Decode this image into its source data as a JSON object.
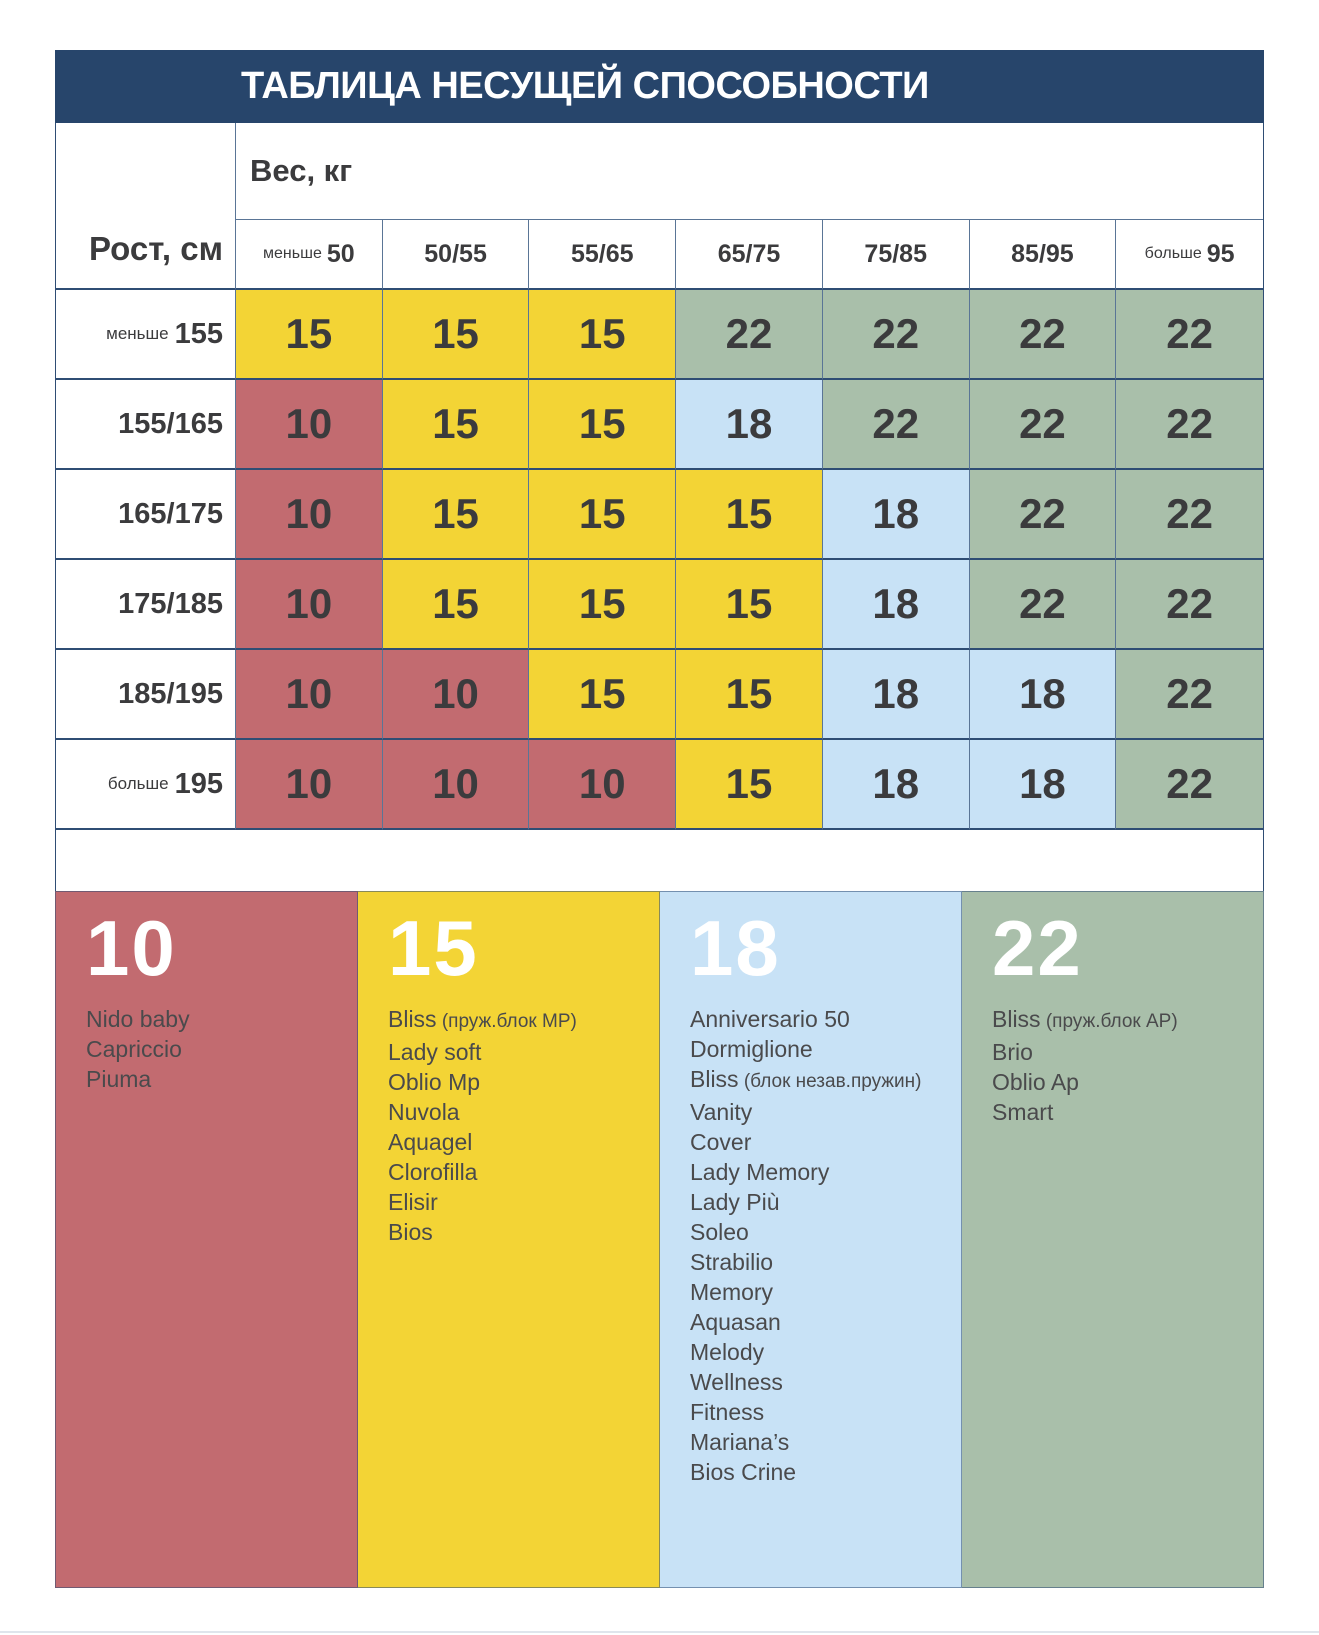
{
  "chart_data": {
    "type": "table",
    "title": "ТАБЛИЦА НЕСУЩЕЙ СПОСОБНОСТИ",
    "col_axis_label": "Вес, кг",
    "row_axis_label": "Рост, см",
    "columns": [
      {
        "small": "меньше",
        "big": "50"
      },
      {
        "small": "",
        "big": "50/55"
      },
      {
        "small": "",
        "big": "55/65"
      },
      {
        "small": "",
        "big": "65/75"
      },
      {
        "small": "",
        "big": "75/85"
      },
      {
        "small": "",
        "big": "85/95"
      },
      {
        "small": "больше",
        "big": "95"
      }
    ],
    "rows": [
      {
        "small": "меньше",
        "big": "155"
      },
      {
        "small": "",
        "big": "155/165"
      },
      {
        "small": "",
        "big": "165/175"
      },
      {
        "small": "",
        "big": "175/185"
      },
      {
        "small": "",
        "big": "185/195"
      },
      {
        "small": "больше",
        "big": "195"
      }
    ],
    "values": [
      [
        15,
        15,
        15,
        22,
        22,
        22,
        22
      ],
      [
        10,
        15,
        15,
        18,
        22,
        22,
        22
      ],
      [
        10,
        15,
        15,
        15,
        18,
        22,
        22
      ],
      [
        10,
        15,
        15,
        15,
        18,
        22,
        22
      ],
      [
        10,
        10,
        15,
        15,
        18,
        18,
        22
      ],
      [
        10,
        10,
        10,
        15,
        18,
        18,
        22
      ]
    ],
    "value_colors": {
      "10": "#c26b70",
      "15": "#f3d435",
      "18": "#c8e2f6",
      "22": "#a9bfaa"
    },
    "legend": [
      {
        "value": "10",
        "color": "#c26b70",
        "items": [
          {
            "name": "Nido baby",
            "note": ""
          },
          {
            "name": "Capriccio",
            "note": ""
          },
          {
            "name": "Piuma",
            "note": ""
          }
        ]
      },
      {
        "value": "15",
        "color": "#f3d435",
        "items": [
          {
            "name": "Bliss",
            "note": "(пруж.блок MP)"
          },
          {
            "name": "Lady soft",
            "note": ""
          },
          {
            "name": "Oblio Mp",
            "note": ""
          },
          {
            "name": "Nuvola",
            "note": ""
          },
          {
            "name": "Aquagel",
            "note": ""
          },
          {
            "name": "Clorofilla",
            "note": ""
          },
          {
            "name": "Elisir",
            "note": ""
          },
          {
            "name": "Bios",
            "note": ""
          }
        ]
      },
      {
        "value": "18",
        "color": "#c8e2f6",
        "items": [
          {
            "name": "Anniversario 50",
            "note": ""
          },
          {
            "name": "Dormiglione",
            "note": ""
          },
          {
            "name": "Bliss",
            "note": "(блок незав.пружин)"
          },
          {
            "name": "Vanity",
            "note": ""
          },
          {
            "name": "Cover",
            "note": ""
          },
          {
            "name": "Lady Memory",
            "note": ""
          },
          {
            "name": "Lady Più",
            "note": ""
          },
          {
            "name": "Soleo",
            "note": ""
          },
          {
            "name": "Strabilio",
            "note": ""
          },
          {
            "name": "Memory",
            "note": ""
          },
          {
            "name": "Aquasan",
            "note": ""
          },
          {
            "name": "Melody",
            "note": ""
          },
          {
            "name": "Wellness",
            "note": ""
          },
          {
            "name": "Fitness",
            "note": ""
          },
          {
            "name": "Mariana’s",
            "note": ""
          },
          {
            "name": "Bios Crine",
            "note": ""
          }
        ]
      },
      {
        "value": "22",
        "color": "#a9bfaa",
        "items": [
          {
            "name": "Bliss",
            "note": "(пруж.блок AP)"
          },
          {
            "name": "Brio",
            "note": ""
          },
          {
            "name": "Oblio Ap",
            "note": ""
          },
          {
            "name": "Smart",
            "note": ""
          }
        ]
      }
    ]
  }
}
